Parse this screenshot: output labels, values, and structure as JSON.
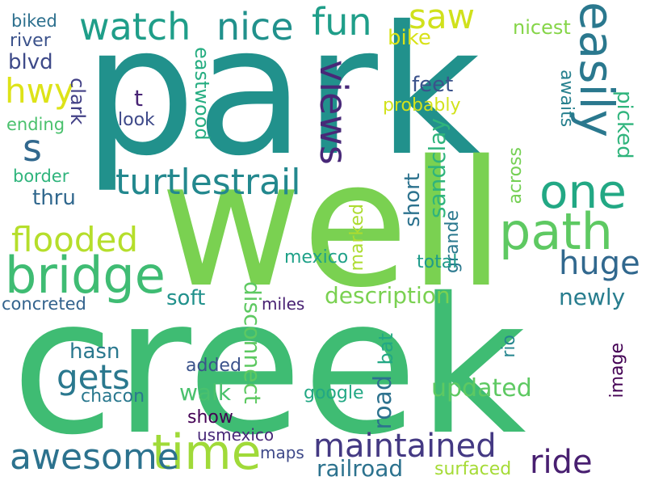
{
  "words": [
    {
      "text": "park",
      "color": "#21918c",
      "orientation": "horizontal"
    },
    {
      "text": "well",
      "color": "#7ad151",
      "orientation": "horizontal"
    },
    {
      "text": "creek",
      "color": "#3fbc73",
      "orientation": "horizontal"
    },
    {
      "text": "easily",
      "color": "#2a788e",
      "orientation": "vertical"
    },
    {
      "text": "one",
      "color": "#22a884",
      "orientation": "horizontal"
    },
    {
      "text": "path",
      "color": "#5ec962",
      "orientation": "horizontal"
    },
    {
      "text": "time",
      "color": "#a0da39",
      "orientation": "horizontal"
    },
    {
      "text": "bridge",
      "color": "#3fbc73",
      "orientation": "horizontal"
    },
    {
      "text": "watch",
      "color": "#1f9e89",
      "orientation": "horizontal"
    },
    {
      "text": "nice",
      "color": "#21918c",
      "orientation": "horizontal"
    },
    {
      "text": "fun",
      "color": "#1f9e89",
      "orientation": "horizontal"
    },
    {
      "text": "saw",
      "color": "#d0e11c",
      "orientation": "horizontal"
    },
    {
      "text": "views",
      "color": "#482878",
      "orientation": "vertical"
    },
    {
      "text": "turtlestrail",
      "color": "#23888e",
      "orientation": "horizontal"
    },
    {
      "text": "flooded",
      "color": "#b5de2b",
      "orientation": "horizontal"
    },
    {
      "text": "huge",
      "color": "#31688e",
      "orientation": "horizontal"
    },
    {
      "text": "gets",
      "color": "#2a788e",
      "orientation": "horizontal"
    },
    {
      "text": "awesome",
      "color": "#2c728e",
      "orientation": "horizontal"
    },
    {
      "text": "maintained",
      "color": "#443983",
      "orientation": "horizontal"
    },
    {
      "text": "ride",
      "color": "#481f70",
      "orientation": "horizontal"
    },
    {
      "text": "hwy",
      "color": "#dde318",
      "orientation": "horizontal"
    },
    {
      "text": "s",
      "color": "#31688e",
      "orientation": "horizontal"
    },
    {
      "text": "bike",
      "color": "#d8e219",
      "orientation": "horizontal"
    },
    {
      "text": "nicest",
      "color": "#86d549",
      "orientation": "horizontal"
    },
    {
      "text": "biked",
      "color": "#2d708e",
      "orientation": "horizontal"
    },
    {
      "text": "river",
      "color": "#3b528b",
      "orientation": "horizontal"
    },
    {
      "text": "blvd",
      "color": "#3e4a89",
      "orientation": "horizontal"
    },
    {
      "text": "clark",
      "color": "#424086",
      "orientation": "vertical"
    },
    {
      "text": "eastwood",
      "color": "#26ad81",
      "orientation": "vertical"
    },
    {
      "text": "feet",
      "color": "#3b528b",
      "orientation": "horizontal"
    },
    {
      "text": "t",
      "color": "#482475",
      "orientation": "horizontal"
    },
    {
      "text": "look",
      "color": "#3e4989",
      "orientation": "horizontal"
    },
    {
      "text": "probably",
      "color": "#d2e21b",
      "orientation": "horizontal"
    },
    {
      "text": "awaits",
      "color": "#27808e",
      "orientation": "vertical"
    },
    {
      "text": "picked",
      "color": "#2fb47c",
      "orientation": "vertical"
    },
    {
      "text": "ending",
      "color": "#4ac16d",
      "orientation": "horizontal"
    },
    {
      "text": "border",
      "color": "#2fb47c",
      "orientation": "horizontal"
    },
    {
      "text": "thru",
      "color": "#31688e",
      "orientation": "horizontal"
    },
    {
      "text": "sandclay",
      "color": "#2fb47c",
      "orientation": "vertical-up"
    },
    {
      "text": "short",
      "color": "#2c728e",
      "orientation": "vertical-up"
    },
    {
      "text": "across",
      "color": "#75d054",
      "orientation": "vertical-up"
    },
    {
      "text": "marked",
      "color": "#addc30",
      "orientation": "vertical-up"
    },
    {
      "text": "grande",
      "color": "#2a788e",
      "orientation": "vertical-up"
    },
    {
      "text": "mexico",
      "color": "#1fa188",
      "orientation": "horizontal"
    },
    {
      "text": "total",
      "color": "#1e9b8a",
      "orientation": "horizontal"
    },
    {
      "text": "disconnect",
      "color": "#5ec962",
      "orientation": "vertical"
    },
    {
      "text": "concreted",
      "color": "#33638d",
      "orientation": "horizontal"
    },
    {
      "text": "soft",
      "color": "#21918c",
      "orientation": "horizontal"
    },
    {
      "text": "description",
      "color": "#7ad151",
      "orientation": "horizontal"
    },
    {
      "text": "newly",
      "color": "#287d8e",
      "orientation": "horizontal"
    },
    {
      "text": "miles",
      "color": "#482173",
      "orientation": "horizontal"
    },
    {
      "text": "hasn",
      "color": "#2a788e",
      "orientation": "horizontal"
    },
    {
      "text": "added",
      "color": "#3b528b",
      "orientation": "horizontal"
    },
    {
      "text": "bat",
      "color": "#22a884",
      "orientation": "vertical-up"
    },
    {
      "text": "rio",
      "color": "#25858e",
      "orientation": "vertical-up"
    },
    {
      "text": "image",
      "color": "#440154",
      "orientation": "vertical-up"
    },
    {
      "text": "walk",
      "color": "#4ac16d",
      "orientation": "horizontal"
    },
    {
      "text": "updated",
      "color": "#5ec962",
      "orientation": "horizontal"
    },
    {
      "text": "chacon",
      "color": "#2a788e",
      "orientation": "horizontal"
    },
    {
      "text": "road",
      "color": "#2c728e",
      "orientation": "vertical-up"
    },
    {
      "text": "google",
      "color": "#22a884",
      "orientation": "horizontal"
    },
    {
      "text": "show",
      "color": "#440154",
      "orientation": "horizontal"
    },
    {
      "text": "usmexico",
      "color": "#482878",
      "orientation": "horizontal"
    },
    {
      "text": "maps",
      "color": "#3e4989",
      "orientation": "horizontal"
    },
    {
      "text": "railroad",
      "color": "#2c728e",
      "orientation": "horizontal"
    },
    {
      "text": "surfaced",
      "color": "#a5db36",
      "orientation": "horizontal"
    }
  ]
}
